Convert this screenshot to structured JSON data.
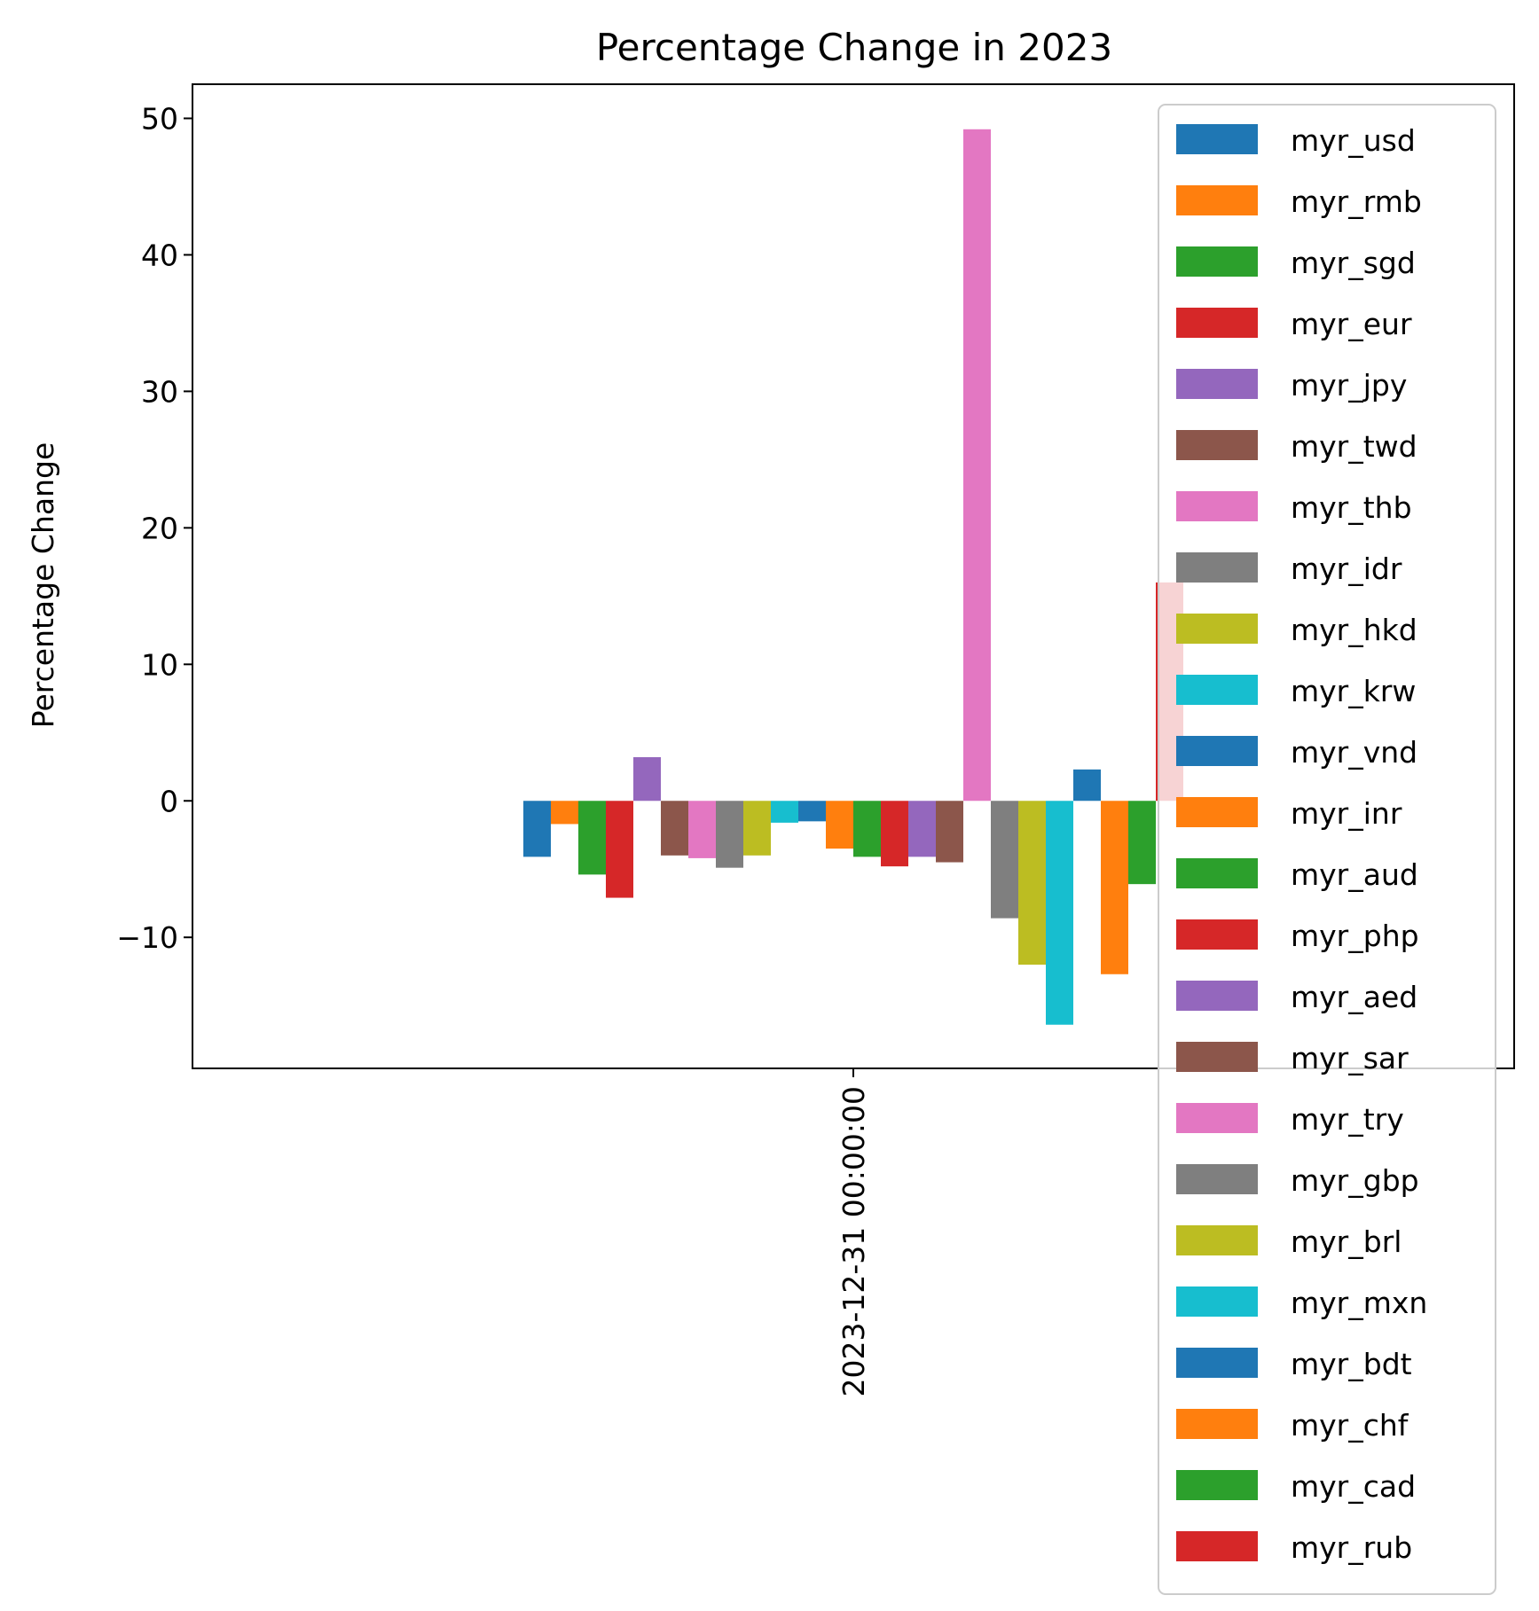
{
  "chart_data": {
    "type": "bar",
    "title": "Percentage Change in 2023",
    "xlabel": "",
    "ylabel": "Percentage Change",
    "categories": [
      "2023-12-31 00:00:00"
    ],
    "ylim": [
      -19.6,
      52.5
    ],
    "yticks": [
      -10,
      0,
      10,
      20,
      30,
      40,
      50
    ],
    "ytick_labels": [
      "−10",
      "0",
      "10",
      "20",
      "30",
      "40",
      "50"
    ],
    "grid": false,
    "legend_position": "upper-right",
    "series": [
      {
        "name": "myr_usd",
        "color": "#1f77b4",
        "values": [
          -4.1
        ]
      },
      {
        "name": "myr_rmb",
        "color": "#ff7f0e",
        "values": [
          -1.7
        ]
      },
      {
        "name": "myr_sgd",
        "color": "#2ca02c",
        "values": [
          -5.4
        ]
      },
      {
        "name": "myr_eur",
        "color": "#d62728",
        "values": [
          -7.1
        ]
      },
      {
        "name": "myr_jpy",
        "color": "#9467bd",
        "values": [
          3.2
        ]
      },
      {
        "name": "myr_twd",
        "color": "#8c564b",
        "values": [
          -4.0
        ]
      },
      {
        "name": "myr_thb",
        "color": "#e377c2",
        "values": [
          -4.2
        ]
      },
      {
        "name": "myr_idr",
        "color": "#7f7f7f",
        "values": [
          -4.9
        ]
      },
      {
        "name": "myr_hkd",
        "color": "#bcbd22",
        "values": [
          -4.0
        ]
      },
      {
        "name": "myr_krw",
        "color": "#17becf",
        "values": [
          -1.6
        ]
      },
      {
        "name": "myr_vnd",
        "color": "#1f77b4",
        "values": [
          -1.5
        ]
      },
      {
        "name": "myr_inr",
        "color": "#ff7f0e",
        "values": [
          -3.5
        ]
      },
      {
        "name": "myr_aud",
        "color": "#2ca02c",
        "values": [
          -4.1
        ]
      },
      {
        "name": "myr_php",
        "color": "#d62728",
        "values": [
          -4.8
        ]
      },
      {
        "name": "myr_aed",
        "color": "#9467bd",
        "values": [
          -4.1
        ]
      },
      {
        "name": "myr_sar",
        "color": "#8c564b",
        "values": [
          -4.5
        ]
      },
      {
        "name": "myr_try",
        "color": "#e377c2",
        "values": [
          49.2
        ]
      },
      {
        "name": "myr_gbp",
        "color": "#7f7f7f",
        "values": [
          -8.6
        ]
      },
      {
        "name": "myr_brl",
        "color": "#bcbd22",
        "values": [
          -12.0
        ]
      },
      {
        "name": "myr_mxn",
        "color": "#17becf",
        "values": [
          -16.4
        ]
      },
      {
        "name": "myr_bdt",
        "color": "#1f77b4",
        "values": [
          2.3
        ]
      },
      {
        "name": "myr_chf",
        "color": "#ff7f0e",
        "values": [
          -12.7
        ]
      },
      {
        "name": "myr_cad",
        "color": "#2ca02c",
        "values": [
          -6.1
        ]
      },
      {
        "name": "myr_rub",
        "color": "#d62728",
        "values": [
          16.0
        ]
      }
    ]
  }
}
